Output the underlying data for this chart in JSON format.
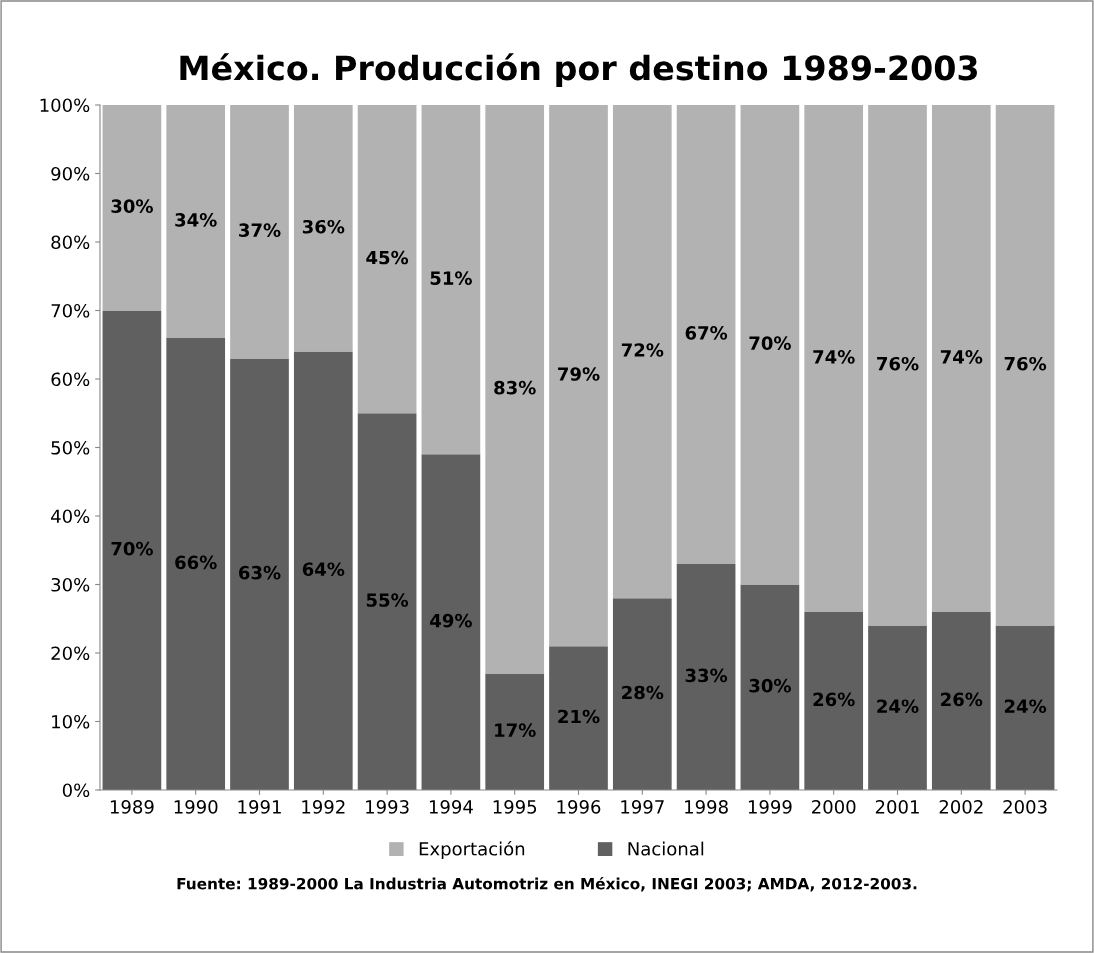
{
  "chart_data": {
    "type": "bar",
    "title": "México. Producción por destino 1989-2003",
    "stacked": true,
    "categories": [
      "1989",
      "1990",
      "1991",
      "1992",
      "1993",
      "1994",
      "1995",
      "1996",
      "1997",
      "1998",
      "1999",
      "2000",
      "2001",
      "2002",
      "2003"
    ],
    "series": [
      {
        "name": "Nacional",
        "color": "#606060",
        "values": [
          70,
          66,
          63,
          64,
          55,
          49,
          17,
          21,
          28,
          33,
          30,
          26,
          24,
          26,
          24
        ],
        "value_labels": [
          "70%",
          "66%",
          "63%",
          "64%",
          "55%",
          "49%",
          "17%",
          "21%",
          "28%",
          "33%",
          "30%",
          "26%",
          "24%",
          "26%",
          "24%"
        ]
      },
      {
        "name": "Exportación",
        "color": "#b2b2b2",
        "values": [
          30,
          34,
          37,
          36,
          45,
          51,
          83,
          79,
          72,
          67,
          70,
          74,
          76,
          74,
          76
        ],
        "value_labels": [
          "30%",
          "34%",
          "37%",
          "36%",
          "45%",
          "51%",
          "83%",
          "79%",
          "72%",
          "67%",
          "70%",
          "74%",
          "76%",
          "74%",
          "76%"
        ]
      }
    ],
    "ylim": [
      0,
      100
    ],
    "yticks": [
      {
        "value": 0,
        "label": "0%"
      },
      {
        "value": 10,
        "label": "10%"
      },
      {
        "value": 20,
        "label": "20%"
      },
      {
        "value": 30,
        "label": "30%"
      },
      {
        "value": 40,
        "label": "40%"
      },
      {
        "value": 50,
        "label": "50%"
      },
      {
        "value": 60,
        "label": "60%"
      },
      {
        "value": 70,
        "label": "70%"
      },
      {
        "value": 80,
        "label": "80%"
      },
      {
        "value": 90,
        "label": "90%"
      },
      {
        "value": 100,
        "label": "100%"
      }
    ],
    "grid": false,
    "legend": "bottom",
    "annotations": [
      "Fuente: 1989-2000 La Industria Automotriz en México, INEGI 2003; AMDA, 2012-2003."
    ]
  }
}
